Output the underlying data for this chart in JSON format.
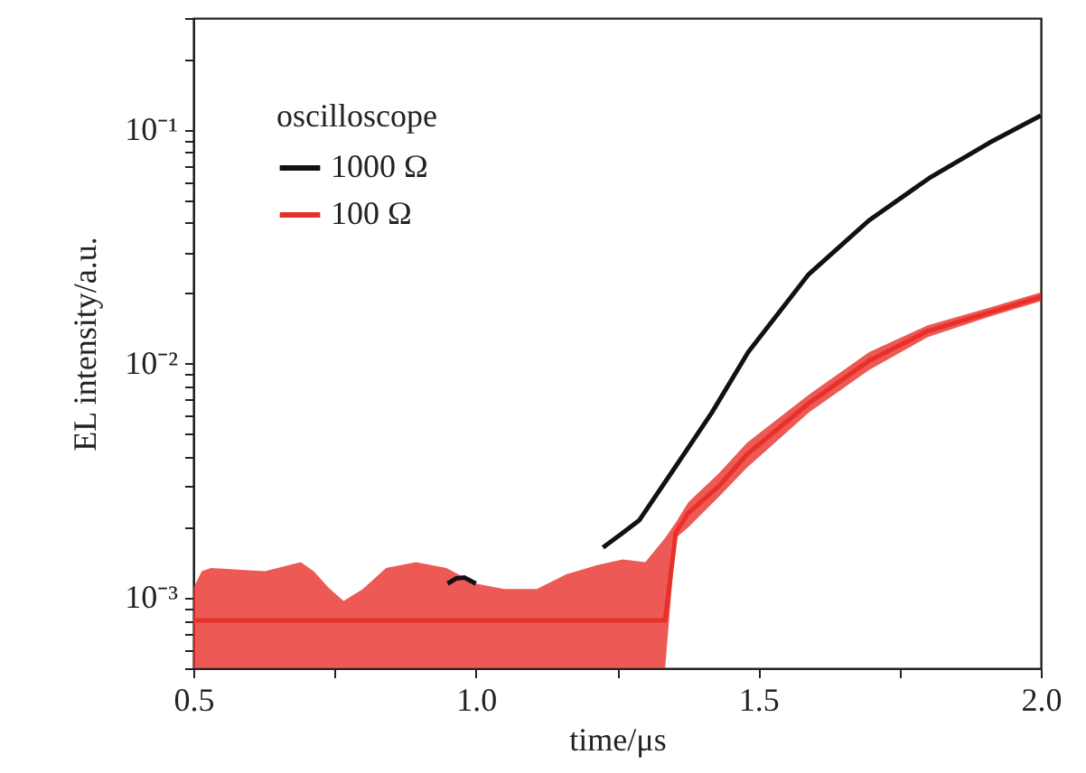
{
  "chart_data": {
    "type": "line",
    "xlabel": "time/μs",
    "ylabel": "EL intensity/a.u.",
    "legend_title": "oscilloscope",
    "legend": "top left",
    "log": "y",
    "xlim": [
      0.5,
      2.0
    ],
    "xticks": [
      0.5,
      {
        "value": 0.75,
        "label": null
      },
      {
        "value": 1,
        "label": "1.0"
      },
      {
        "value": 1.25,
        "label": null
      },
      1.5,
      {
        "value": 1.75,
        "label": null
      },
      {
        "value": 2,
        "label": "2.0"
      }
    ],
    "ylim": [
      0.0005,
      0.3
    ],
    "yticks": [
      {
        "value": 0.0005,
        "label": null
      },
      {
        "value": 0.0006,
        "label": null
      },
      {
        "value": 0.0007,
        "label": null
      },
      {
        "value": 0.0008,
        "label": null
      },
      {
        "value": 0.0009,
        "label": null
      },
      {
        "value": 0.001,
        "label": "10⁻³"
      },
      {
        "value": 0.002,
        "label": null
      },
      {
        "value": 0.003,
        "label": null
      },
      {
        "value": 0.004,
        "label": null
      },
      {
        "value": 0.005,
        "label": null
      },
      {
        "value": 0.006,
        "label": null
      },
      {
        "value": 0.007,
        "label": null
      },
      {
        "value": 0.008,
        "label": null
      },
      {
        "value": 0.009,
        "label": null
      },
      {
        "value": 0.01,
        "label": "10⁻²"
      },
      {
        "value": 0.02,
        "label": null
      },
      {
        "value": 0.03,
        "label": null
      },
      {
        "value": 0.04,
        "label": null
      },
      {
        "value": 0.05,
        "label": null
      },
      {
        "value": 0.06,
        "label": null
      },
      {
        "value": 0.07,
        "label": null
      },
      {
        "value": 0.08,
        "label": null
      },
      {
        "value": 0.09,
        "label": null
      },
      {
        "value": 0.1,
        "label": "10⁻¹"
      },
      {
        "value": 0.2,
        "label": null
      },
      {
        "value": 0.3,
        "label": null
      }
    ],
    "series": [
      {
        "name": "1000 Ω",
        "color": "#111111",
        "x": [
          0.95,
          0.965,
          0.98,
          1.0,
          1.02,
          1.225,
          1.257,
          1.289,
          1.354,
          1.418,
          1.482,
          1.589,
          1.696,
          1.802,
          1.909,
          2.0
        ],
        "values": [
          0.00115,
          0.00121,
          0.00122,
          0.00115,
          null,
          0.00164,
          0.00187,
          0.00214,
          0.00365,
          0.0062,
          0.0112,
          0.0241,
          0.041,
          0.062,
          0.088,
          0.115
        ]
      },
      {
        "name": "100 Ω",
        "color": "#e8302a",
        "x": [
          0.5,
          0.515,
          0.531,
          0.627,
          0.69,
          0.713,
          0.74,
          0.766,
          0.8,
          0.841,
          0.894,
          0.948,
          1.0,
          1.05,
          1.108,
          1.16,
          1.215,
          1.26,
          1.3,
          1.335,
          1.354,
          1.376,
          1.43,
          1.48,
          1.59,
          1.696,
          1.8,
          1.91,
          2.0
        ],
        "values": [
          0.0008,
          0.0008,
          0.0008,
          0.0008,
          0.0008,
          0.0008,
          0.0008,
          0.0008,
          0.0008,
          0.0008,
          0.0008,
          0.0008,
          0.0008,
          0.0008,
          0.0008,
          0.0008,
          0.0008,
          0.0008,
          0.0008,
          0.0008,
          0.0019,
          0.0023,
          0.003,
          0.0041,
          0.0068,
          0.0103,
          0.0138,
          0.0166,
          0.0193
        ],
        "lower": [
          0.0005,
          0.0005,
          0.0005,
          0.0005,
          0.0005,
          0.0005,
          0.0005,
          0.0005,
          0.0005,
          0.0005,
          0.0005,
          0.0005,
          0.0005,
          0.0005,
          0.0005,
          0.0005,
          0.0005,
          0.0005,
          0.0005,
          0.0005,
          0.0018,
          0.002,
          0.0027,
          0.0036,
          0.0062,
          0.0094,
          0.013,
          0.0159,
          0.0185
        ],
        "upper": [
          0.0011,
          0.0013,
          0.00134,
          0.0013,
          0.00142,
          0.0013,
          0.0011,
          0.00097,
          0.00109,
          0.00134,
          0.00142,
          0.00134,
          0.00115,
          0.00109,
          0.00109,
          0.00126,
          0.00138,
          0.00146,
          0.00142,
          0.0018,
          0.0021,
          0.00256,
          0.0034,
          0.0046,
          0.0074,
          0.0112,
          0.0146,
          0.0174,
          0.0202
        ]
      }
    ]
  }
}
